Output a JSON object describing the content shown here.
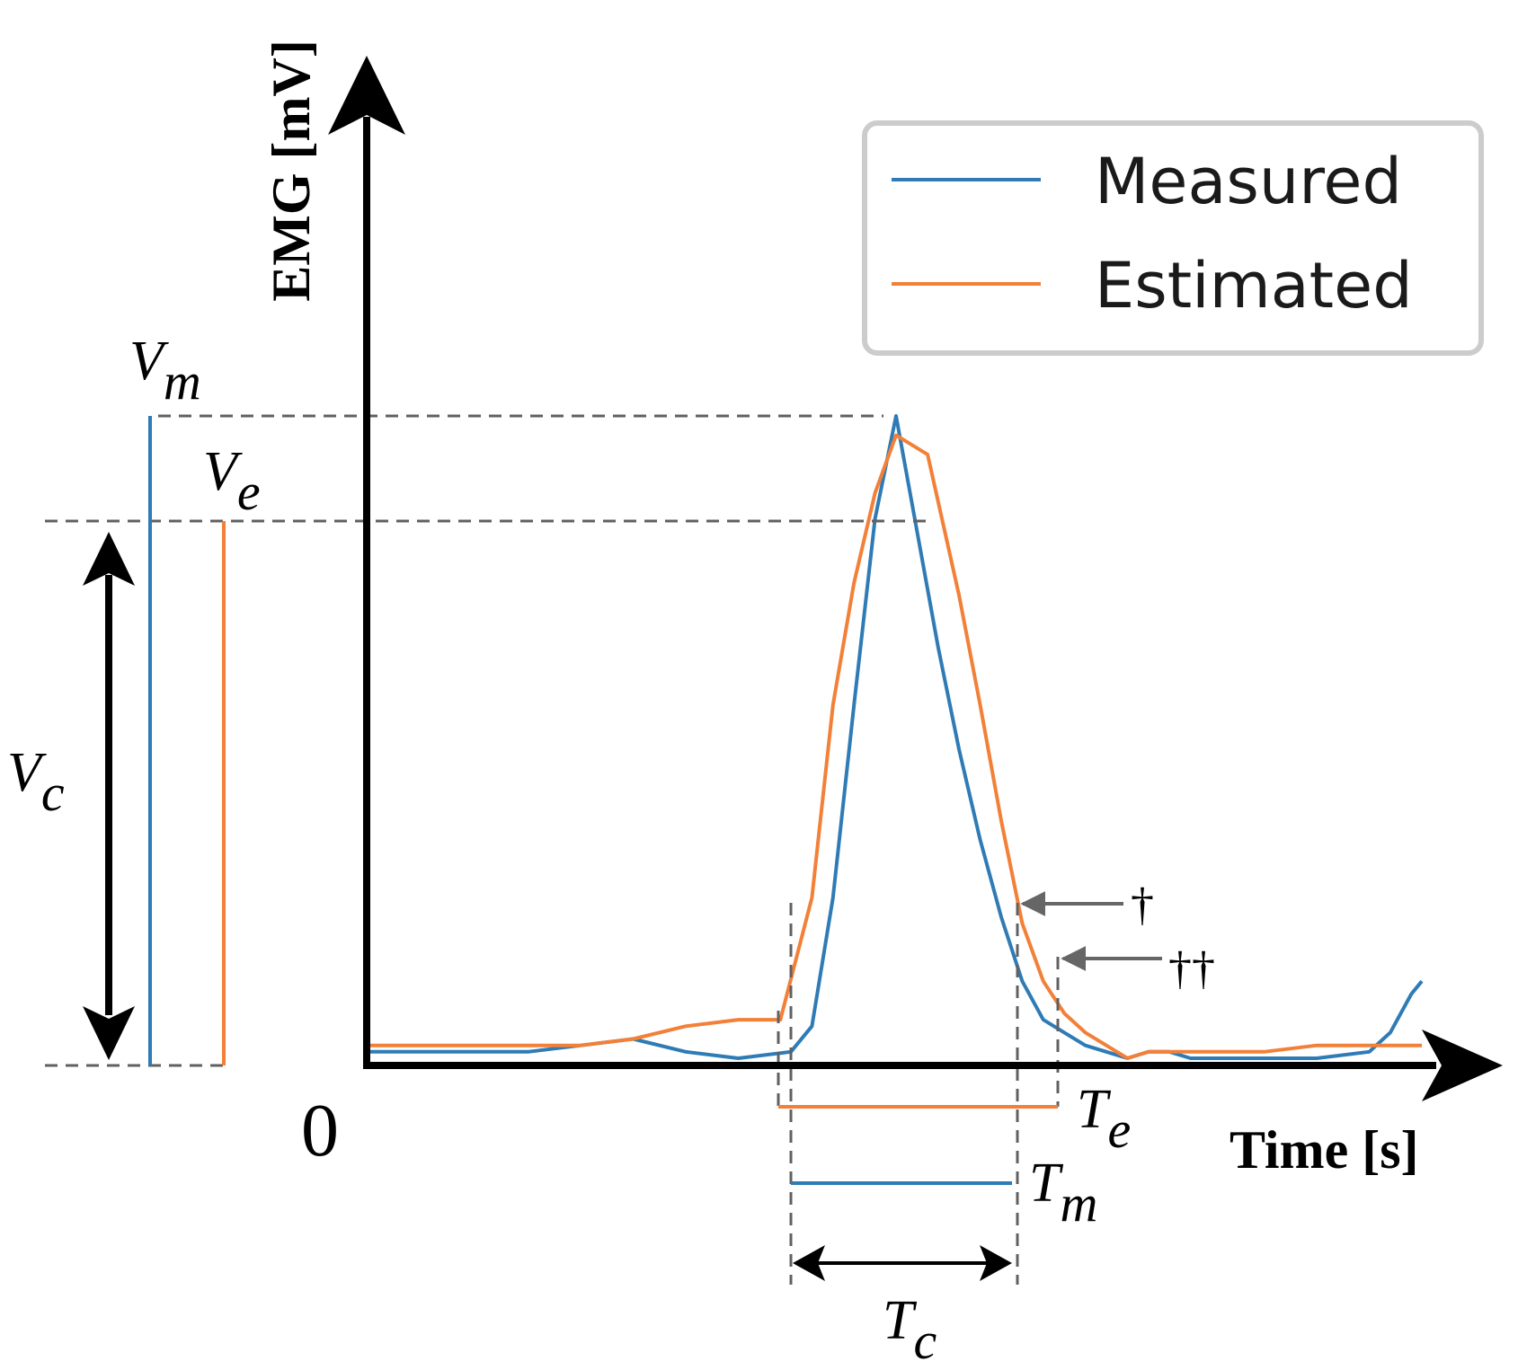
{
  "chart_data": {
    "type": "line",
    "xlabel": "Time [s]",
    "ylabel": "EMG [mV]",
    "origin_label": "0",
    "xlim": [
      0,
      100
    ],
    "ylim": [
      0,
      100
    ],
    "axis_ticks": false,
    "grid": false,
    "legend": {
      "placement": "top-right"
    },
    "series": [
      {
        "name": "Measured",
        "color": "#2f7bb5",
        "x": [
          0,
          5,
          10,
          15,
          20,
          25,
          30,
          35,
          40,
          42,
          44,
          46,
          48,
          50,
          52,
          54,
          56,
          58,
          60,
          62,
          64,
          66,
          68,
          70,
          72,
          74,
          76,
          78,
          80,
          85,
          90,
          95,
          97,
          99,
          100
        ],
        "y": [
          1,
          1,
          1,
          1,
          2,
          3,
          1,
          0,
          1,
          5,
          25,
          55,
          84,
          100,
          82,
          64,
          48,
          34,
          22,
          12,
          6,
          4,
          2,
          1,
          0,
          1,
          1,
          0,
          0,
          0,
          0,
          1,
          4,
          10,
          12
        ]
      },
      {
        "name": "Estimated",
        "color": "#f28038",
        "x": [
          0,
          10,
          20,
          25,
          30,
          35,
          39,
          42,
          44,
          46,
          48,
          50,
          53,
          56,
          58,
          60,
          62,
          64,
          66,
          68,
          70,
          72,
          74,
          76,
          80,
          85,
          90,
          95,
          100
        ],
        "y": [
          2,
          2,
          2,
          3,
          5,
          6,
          6,
          25,
          55,
          74,
          88,
          97,
          94,
          72,
          55,
          37,
          21,
          12,
          7,
          4,
          2,
          0,
          1,
          1,
          1,
          1,
          2,
          2,
          2
        ]
      }
    ],
    "annotations": {
      "V_m": "V",
      "V_m_sub": "m",
      "V_e": "V",
      "V_e_sub": "e",
      "V_c": "V",
      "V_c_sub": "c",
      "T_e": "T",
      "T_e_sub": "e",
      "T_m": "T",
      "T_m_sub": "m",
      "T_c": "T",
      "T_c_sub": "c",
      "dagger": "†",
      "double_dagger": "††"
    }
  }
}
